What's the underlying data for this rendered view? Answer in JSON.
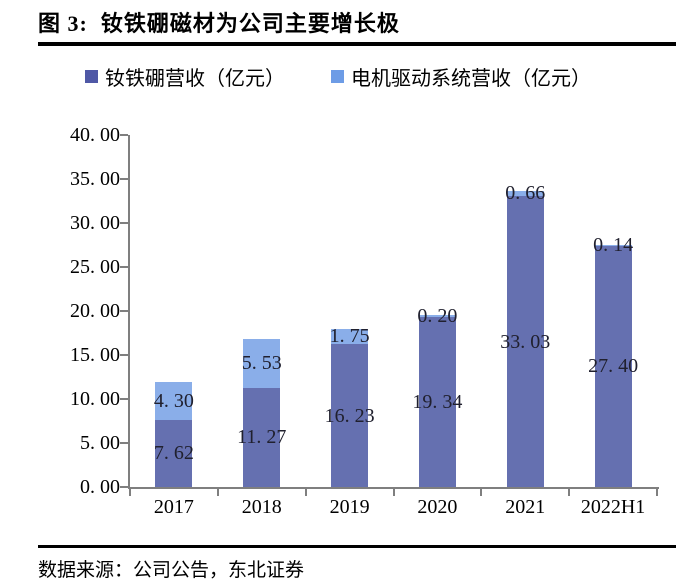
{
  "page": {
    "title": "图 3:  钕铁硼磁材为公司主要增长极",
    "source": "数据来源：公司公告，东北证券"
  },
  "colors": {
    "axis": "#7f7f7f",
    "rule": "#000000",
    "data_label": "#20202e",
    "series_dark": "#6570B0",
    "series_light": "#8AAEE9",
    "legend_swatch_dark": "#4F58A6",
    "legend_swatch_light": "#6D9CE6"
  },
  "legend": [
    {
      "label": "钕铁硼营收（亿元）",
      "swatch_color": "#4F58A6"
    },
    {
      "label": "电机驱动系统营收（亿元）",
      "swatch_color": "#6D9CE6"
    }
  ],
  "chart_data": {
    "type": "bar",
    "stacked": true,
    "title": "钕铁硼磁材为公司主要增长极",
    "categories": [
      "2017",
      "2018",
      "2019",
      "2020",
      "2021",
      "2022H1"
    ],
    "series": [
      {
        "name": "钕铁硼营收（亿元）",
        "color": "#6570B0",
        "values": [
          7.62,
          11.27,
          16.23,
          19.34,
          33.03,
          27.4
        ],
        "labels": [
          "7. 62",
          "11. 27",
          "16. 23",
          "19. 34",
          "33. 03",
          "27. 40"
        ]
      },
      {
        "name": "电机驱动系统营收（亿元）",
        "color": "#8AAEE9",
        "values": [
          4.3,
          5.53,
          1.75,
          0.2,
          0.66,
          0.14
        ],
        "labels": [
          "4. 30",
          "5. 53",
          "1. 75",
          "0. 20",
          "0. 66",
          "0. 14"
        ]
      }
    ],
    "ylim": [
      0,
      40
    ],
    "ytick_step": 5,
    "ytick_labels": [
      "0. 00",
      "5. 00",
      "10. 00",
      "15. 00",
      "20. 00",
      "25. 00",
      "30. 00",
      "35. 00",
      "40. 00"
    ],
    "xlabel": "",
    "ylabel": "",
    "grid": false,
    "legend_position": "top"
  }
}
